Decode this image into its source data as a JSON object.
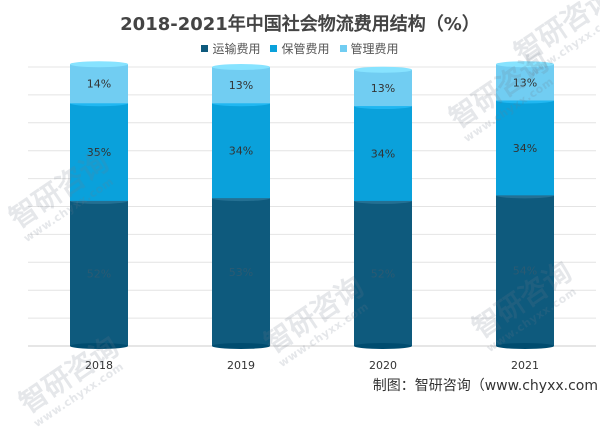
{
  "chart_data": {
    "type": "bar",
    "stacked": true,
    "percent": true,
    "title": "2018-2021年中国社会物流费用结构（%）",
    "categories": [
      "2018",
      "2019",
      "2020",
      "2021"
    ],
    "series": [
      {
        "name": "运输费用",
        "values": [
          52,
          53,
          52,
          54
        ],
        "labels": [
          "52%",
          "53%",
          "52%",
          "54%"
        ],
        "color": "#0E5A7D"
      },
      {
        "name": "保管费用",
        "values": [
          35,
          34,
          34,
          34
        ],
        "labels": [
          "35%",
          "34%",
          "34%",
          "34%"
        ],
        "color": "#0AA1DB"
      },
      {
        "name": "管理费用",
        "values": [
          14,
          13,
          13,
          13
        ],
        "labels": [
          "14%",
          "13%",
          "13%",
          "13%"
        ],
        "color": "#71CDF2"
      }
    ],
    "ylim": [
      0,
      100
    ],
    "grid": true,
    "legend": "top-center"
  },
  "watermarks": [
    {
      "text": "智研咨询",
      "subtext": "www.chyxx.com"
    }
  ],
  "footer": {
    "source_label": "制图：智研咨询（www.chyxx.com"
  }
}
